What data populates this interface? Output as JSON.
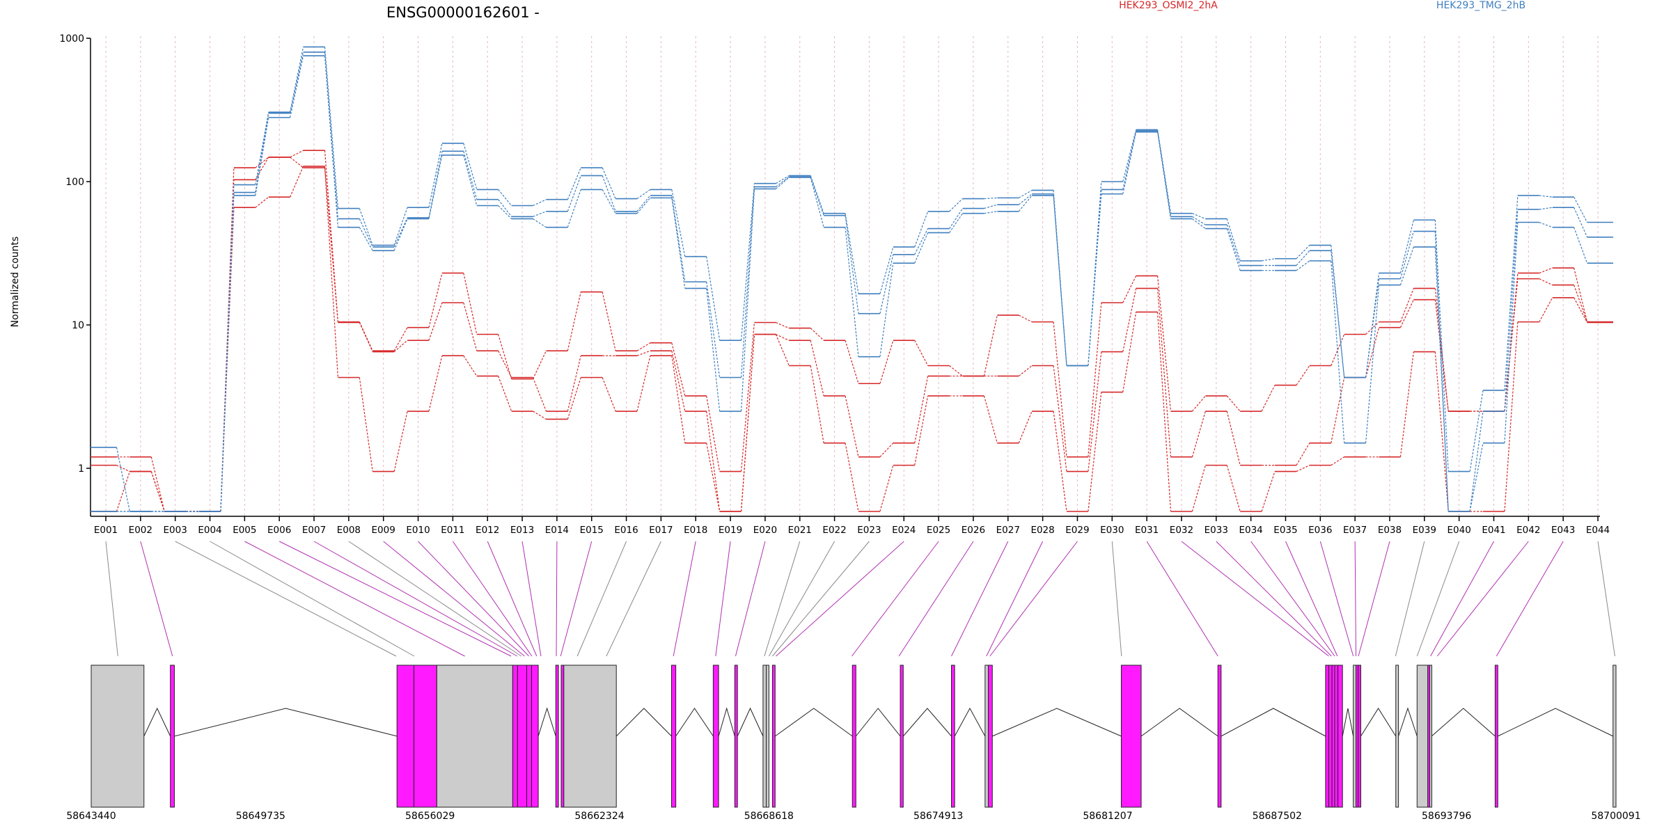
{
  "chart_data": {
    "type": "line",
    "title": "ENSG00000162601 -",
    "ylabel": "Normalized counts",
    "yscale": "log",
    "ylim": [
      0.5,
      1000
    ],
    "yticks": [
      1,
      10,
      100,
      1000
    ],
    "ytick_labels": [
      "1",
      "10",
      "100",
      "1000"
    ],
    "grid": "vertical dotted lines at each exon",
    "legend_placement": "top",
    "legend": [
      {
        "name": "HEK293_OSMI2_2hA",
        "color": "#d62728"
      },
      {
        "name": "HEK293_TMG_2hB",
        "color": "#3f7fbf"
      }
    ],
    "categories": [
      "E001",
      "E002",
      "E003",
      "E004",
      "E005",
      "E006",
      "E007",
      "E008",
      "E009",
      "E010",
      "E011",
      "E012",
      "E013",
      "E014",
      "E015",
      "E016",
      "E017",
      "E018",
      "E019",
      "E020",
      "E021",
      "E022",
      "E023",
      "E024",
      "E025",
      "E026",
      "E027",
      "E028",
      "E029",
      "E030",
      "E031",
      "E032",
      "E033",
      "E034",
      "E035",
      "E036",
      "E037",
      "E038",
      "E039",
      "E040",
      "E041",
      "E042",
      "E043",
      "E044"
    ],
    "series": [
      {
        "group": "HEK293_OSMI2_2hA",
        "color": "#d62728",
        "values": [
          1.2,
          1.2,
          0.5,
          0.5,
          125,
          148,
          165,
          10.5,
          6.6,
          9.6,
          23,
          8.6,
          4.2,
          6.6,
          17,
          6.6,
          7.5,
          3.2,
          0.95,
          10.4,
          9.5,
          7.8,
          3.9,
          7.8,
          5.2,
          4.4,
          11.7,
          10.5,
          1.2,
          14.3,
          22,
          2.5,
          3.2,
          2.5,
          3.8,
          5.2,
          8.6,
          10.5,
          18,
          2.5,
          2.5,
          23,
          25,
          10.5
        ]
      },
      {
        "group": "HEK293_OSMI2_2hA",
        "color": "#d62728",
        "values": [
          1.05,
          0.95,
          0.5,
          0.5,
          103,
          148,
          125,
          10.4,
          6.5,
          7.8,
          14.3,
          6.6,
          4.3,
          2.5,
          6.1,
          6.1,
          6.6,
          2.5,
          0.5,
          8.6,
          7.8,
          3.2,
          1.2,
          1.5,
          4.4,
          4.4,
          4.4,
          5.2,
          0.95,
          6.5,
          18,
          1.2,
          2.5,
          1.05,
          1.05,
          1.5,
          4.3,
          9.6,
          15,
          2.5,
          2.5,
          21,
          19,
          10.5
        ]
      },
      {
        "group": "HEK293_OSMI2_2hA",
        "color": "#d62728",
        "values": [
          0.5,
          0.95,
          0.5,
          0.5,
          66,
          78,
          128,
          4.3,
          0.95,
          2.5,
          6.1,
          4.4,
          2.5,
          2.2,
          4.3,
          2.5,
          6.1,
          1.5,
          0.5,
          8.6,
          5.2,
          1.5,
          0.5,
          1.05,
          3.2,
          3.2,
          1.5,
          2.5,
          0.5,
          3.4,
          12.3,
          0.5,
          1.05,
          0.5,
          0.95,
          1.05,
          1.2,
          1.2,
          6.5,
          0.5,
          0.5,
          10.5,
          15.5,
          10.4
        ]
      },
      {
        "group": "HEK293_TMG_2hB",
        "color": "#3f7fbf",
        "values": [
          1.4,
          0.5,
          0.5,
          0.5,
          95,
          305,
          870,
          65,
          36,
          66,
          185,
          88,
          68,
          75,
          125,
          76,
          88,
          30,
          7.8,
          97,
          110,
          60,
          16.5,
          35,
          62,
          76,
          77,
          87,
          5.2,
          100,
          230,
          60,
          55,
          28,
          29,
          36,
          4.3,
          23,
          54,
          0.95,
          3.5,
          80,
          78,
          52
        ]
      },
      {
        "group": "HEK293_TMG_2hB",
        "color": "#3f7fbf",
        "values": [
          0.5,
          0.5,
          0.5,
          0.5,
          84,
          300,
          800,
          55,
          35,
          56,
          163,
          75,
          57,
          62,
          110,
          62,
          80,
          20,
          4.3,
          92,
          108,
          58,
          12,
          31,
          47,
          65,
          69,
          82,
          5.2,
          88,
          226,
          57,
          50,
          26,
          26,
          33,
          4.3,
          21,
          45,
          0.5,
          2.5,
          64,
          66,
          41
        ]
      },
      {
        "group": "HEK293_TMG_2hB",
        "color": "#3f7fbf",
        "values": [
          0.5,
          0.5,
          0.5,
          0.5,
          80,
          280,
          755,
          48,
          33,
          55,
          153,
          68,
          55,
          48,
          88,
          60,
          77,
          18,
          2.5,
          89,
          107,
          48,
          6,
          27,
          44,
          60,
          62,
          80,
          5.2,
          82,
          222,
          55,
          47,
          24,
          24,
          28,
          1.5,
          19,
          35,
          0.5,
          1.5,
          52,
          48,
          27
        ]
      }
    ],
    "gene_model": {
      "genomic_ticks": [
        "58643440",
        "58649735",
        "58656029",
        "58662324",
        "58668618",
        "58674913",
        "58681207",
        "58687502",
        "58693796",
        "58700091"
      ],
      "features": [
        {
          "start": 58643440,
          "end": 58645400,
          "tested": false
        },
        {
          "start": 58646380,
          "end": 58646530,
          "tested": true
        },
        {
          "start": 58654800,
          "end": 58655430,
          "tested": true
        },
        {
          "start": 58655430,
          "end": 58656280,
          "tested": true
        },
        {
          "start": 58656280,
          "end": 58659100,
          "tested": false
        },
        {
          "start": 58659100,
          "end": 58659280,
          "tested": true
        },
        {
          "start": 58659280,
          "end": 58659620,
          "tested": true
        },
        {
          "start": 58659620,
          "end": 58659800,
          "tested": true
        },
        {
          "start": 58659800,
          "end": 58660050,
          "tested": true
        },
        {
          "start": 58660700,
          "end": 58660800,
          "tested": true
        },
        {
          "start": 58660900,
          "end": 58661000,
          "tested": true
        },
        {
          "start": 58661000,
          "end": 58662950,
          "tested": false
        },
        {
          "start": 58665000,
          "end": 58665160,
          "tested": true
        },
        {
          "start": 58666550,
          "end": 58666750,
          "tested": true
        },
        {
          "start": 58667350,
          "end": 58667450,
          "tested": true
        },
        {
          "start": 58668400,
          "end": 58668520,
          "tested": false
        },
        {
          "start": 58668520,
          "end": 58668620,
          "tested": false
        },
        {
          "start": 58668750,
          "end": 58668850,
          "tested": true
        },
        {
          "start": 58671720,
          "end": 58671850,
          "tested": true
        },
        {
          "start": 58673500,
          "end": 58673610,
          "tested": true
        },
        {
          "start": 58675400,
          "end": 58675520,
          "tested": true
        },
        {
          "start": 58676650,
          "end": 58676770,
          "tested": false
        },
        {
          "start": 58676770,
          "end": 58676920,
          "tested": true
        },
        {
          "start": 58681710,
          "end": 58682450,
          "tested": true
        },
        {
          "start": 58685300,
          "end": 58685420,
          "tested": true
        },
        {
          "start": 58689300,
          "end": 58689420,
          "tested": true
        },
        {
          "start": 58689420,
          "end": 58689540,
          "tested": true
        },
        {
          "start": 58689540,
          "end": 58689640,
          "tested": true
        },
        {
          "start": 58689640,
          "end": 58689760,
          "tested": true
        },
        {
          "start": 58689760,
          "end": 58689930,
          "tested": true
        },
        {
          "start": 58690330,
          "end": 58690430,
          "tested": false
        },
        {
          "start": 58690430,
          "end": 58690510,
          "tested": true
        },
        {
          "start": 58690510,
          "end": 58690610,
          "tested": true
        },
        {
          "start": 58691910,
          "end": 58692010,
          "tested": false
        },
        {
          "start": 58692700,
          "end": 58693100,
          "tested": false
        },
        {
          "start": 58693100,
          "end": 58693170,
          "tested": true
        },
        {
          "start": 58693170,
          "end": 58693240,
          "tested": false
        },
        {
          "start": 58695600,
          "end": 58695700,
          "tested": true
        },
        {
          "start": 58699980,
          "end": 58700091,
          "tested": false
        }
      ],
      "connector_targets": [
        58644430,
        58646460,
        58654770,
        58655440,
        58657320,
        58659040,
        58659270,
        58659420,
        58659540,
        58659700,
        58659810,
        58659990,
        58660150,
        58660720,
        58660880,
        58661500,
        58662580,
        58665070,
        58666640,
        58667380,
        58668450,
        58668620,
        58668750,
        58668880,
        58671700,
        58673450,
        58675400,
        58676700,
        58676830,
        58681720,
        58685300,
        58689420,
        58689520,
        58689640,
        58689740,
        58690330,
        58690430,
        58690520,
        58691900,
        58692700,
        58693200,
        58693450,
        58695650,
        58700050
      ]
    }
  }
}
